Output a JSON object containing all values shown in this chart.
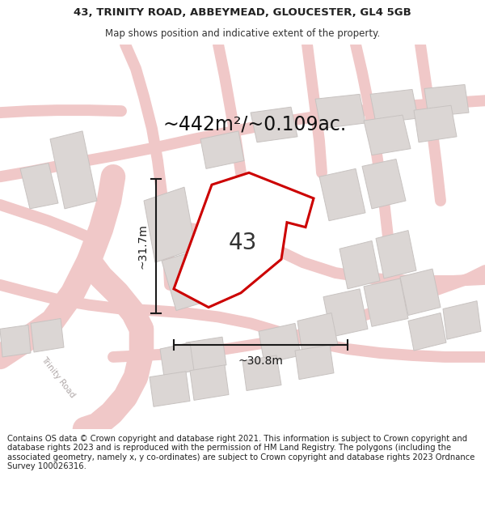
{
  "title_line1": "43, TRINITY ROAD, ABBEYMEAD, GLOUCESTER, GL4 5GB",
  "title_line2": "Map shows position and indicative extent of the property.",
  "area_label": "~442m²/~0.109ac.",
  "plot_number": "43",
  "dim_vertical": "~31.7m",
  "dim_horizontal": "~30.8m",
  "footer_text": "Contains OS data © Crown copyright and database right 2021. This information is subject to Crown copyright and database rights 2023 and is reproduced with the permission of HM Land Registry. The polygons (including the associated geometry, namely x, y co-ordinates) are subject to Crown copyright and database rights 2023 Ordnance Survey 100026316.",
  "map_bg": "#ffffff",
  "road_color": "#f0c8c8",
  "building_color": "#dbd6d4",
  "building_edge": "#c8c3c1",
  "plot_fill": "#ffffff",
  "plot_edge": "#cc0000",
  "plot_edge_width": 2.2,
  "dim_color": "#1a1a1a",
  "title_fontsize": 9.5,
  "subtitle_fontsize": 8.5,
  "area_fontsize": 17,
  "plot_num_fontsize": 20,
  "dim_fontsize": 10,
  "footer_fontsize": 7.2,
  "road_label_color": "#b0a8a8",
  "road_label_fontsize": 7.5
}
